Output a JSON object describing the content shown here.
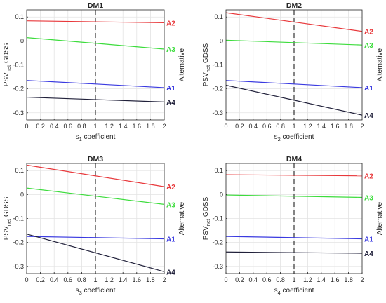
{
  "chart_data": [
    {
      "type": "line",
      "title": "DM1",
      "ylabel": "PSV",
      "ylabel_sub": "net",
      "ylabel_rest": " GDSS",
      "xlabel": "s",
      "xlabel_sub": "1",
      "xlabel_rest": " coefficient",
      "y2label": "Alternative",
      "xlim": [
        0,
        2
      ],
      "ylim": [
        -0.33,
        0.13
      ],
      "xticks": [
        0,
        0.2,
        0.4,
        0.6,
        0.8,
        1,
        1.2,
        1.4,
        1.6,
        1.8,
        2
      ],
      "xtick_labels": [
        "0",
        "0.2",
        "0.4",
        "0.6",
        "0.8",
        "1",
        "1.2",
        "1.4",
        "1.6",
        "1.8",
        "2"
      ],
      "yticks": [
        0.1,
        0,
        -0.1,
        -0.2,
        -0.3
      ],
      "ytick_labels": [
        "0.1",
        "0",
        "-0.1",
        "-0.2",
        "-0.3"
      ],
      "grid": true,
      "reference_x": 1,
      "series": [
        {
          "name": "A2",
          "color": "#e8383b",
          "x": [
            0,
            2
          ],
          "y": [
            0.084,
            0.076
          ]
        },
        {
          "name": "A3",
          "color": "#3ddc3d",
          "x": [
            0,
            2
          ],
          "y": [
            0.014,
            -0.034
          ]
        },
        {
          "name": "A1",
          "color": "#3a3ae0",
          "x": [
            0,
            2
          ],
          "y": [
            -0.165,
            -0.195
          ]
        },
        {
          "name": "A4",
          "color": "#20203a",
          "x": [
            0,
            2
          ],
          "y": [
            -0.235,
            -0.255
          ]
        }
      ]
    },
    {
      "type": "line",
      "title": "DM2",
      "ylabel": "PSV",
      "ylabel_sub": "net",
      "ylabel_rest": " GDSS",
      "xlabel": "s",
      "xlabel_sub": "2",
      "xlabel_rest": " coefficient",
      "y2label": "Alternative",
      "xlim": [
        0,
        2
      ],
      "ylim": [
        -0.33,
        0.13
      ],
      "xticks": [
        0,
        0.2,
        0.4,
        0.6,
        0.8,
        1,
        1.2,
        1.4,
        1.6,
        1.8,
        2
      ],
      "xtick_labels": [
        "0",
        "0.2",
        "0.4",
        "0.6",
        "0.8",
        "1",
        "1.2",
        "1.4",
        "1.6",
        "1.8",
        "2"
      ],
      "yticks": [
        0.1,
        0,
        -0.1,
        -0.2,
        -0.3
      ],
      "ytick_labels": [
        "0.1",
        "0",
        "-0.1",
        "-0.2",
        "-0.3"
      ],
      "grid": true,
      "reference_x": 1,
      "series": [
        {
          "name": "A2",
          "color": "#e8383b",
          "x": [
            0,
            2
          ],
          "y": [
            0.118,
            0.04
          ]
        },
        {
          "name": "A3",
          "color": "#3ddc3d",
          "x": [
            0,
            2
          ],
          "y": [
            0.003,
            -0.017
          ]
        },
        {
          "name": "A1",
          "color": "#3a3ae0",
          "x": [
            0,
            2
          ],
          "y": [
            -0.165,
            -0.195
          ]
        },
        {
          "name": "A4",
          "color": "#20203a",
          "x": [
            0,
            2
          ],
          "y": [
            -0.185,
            -0.31
          ]
        }
      ]
    },
    {
      "type": "line",
      "title": "DM3",
      "ylabel": "PSV",
      "ylabel_sub": "net",
      "ylabel_rest": " GDSS",
      "xlabel": "s",
      "xlabel_sub": "3",
      "xlabel_rest": " coefficient",
      "y2label": "Alternative",
      "xlim": [
        0,
        2
      ],
      "ylim": [
        -0.33,
        0.13
      ],
      "xticks": [
        0,
        0.2,
        0.4,
        0.6,
        0.8,
        1,
        1.2,
        1.4,
        1.6,
        1.8,
        2
      ],
      "xtick_labels": [
        "0",
        "0.2",
        "0.4",
        "0.6",
        "0.8",
        "1",
        "1.2",
        "1.4",
        "1.6",
        "1.8",
        "2"
      ],
      "yticks": [
        0.1,
        0,
        -0.1,
        -0.2,
        -0.3
      ],
      "ytick_labels": [
        "0.1",
        "0",
        "-0.1",
        "-0.2",
        "-0.3"
      ],
      "grid": true,
      "reference_x": 1,
      "series": [
        {
          "name": "A2",
          "color": "#e8383b",
          "x": [
            0,
            2
          ],
          "y": [
            0.123,
            0.033
          ]
        },
        {
          "name": "A3",
          "color": "#3ddc3d",
          "x": [
            0,
            2
          ],
          "y": [
            0.027,
            -0.041
          ]
        },
        {
          "name": "A1",
          "color": "#3a3ae0",
          "x": [
            0,
            2
          ],
          "y": [
            -0.175,
            -0.185
          ]
        },
        {
          "name": "A4",
          "color": "#20203a",
          "x": [
            0,
            2
          ],
          "y": [
            -0.165,
            -0.322
          ]
        }
      ]
    },
    {
      "type": "line",
      "title": "DM4",
      "ylabel": "PSV",
      "ylabel_sub": "net",
      "ylabel_rest": " GDSS",
      "xlabel": "s",
      "xlabel_sub": "4",
      "xlabel_rest": " coefficient",
      "y2label": "Alternative",
      "xlim": [
        0,
        2
      ],
      "ylim": [
        -0.33,
        0.13
      ],
      "xticks": [
        0,
        0.2,
        0.4,
        0.6,
        0.8,
        1,
        1.2,
        1.4,
        1.6,
        1.8,
        2
      ],
      "xtick_labels": [
        "0",
        "0.2",
        "0.4",
        "0.6",
        "0.8",
        "1",
        "1.2",
        "1.4",
        "1.6",
        "1.8",
        "2"
      ],
      "yticks": [
        0.1,
        0,
        -0.1,
        -0.2,
        -0.3
      ],
      "ytick_labels": [
        "0.1",
        "0",
        "-0.1",
        "-0.2",
        "-0.3"
      ],
      "grid": true,
      "reference_x": 1,
      "series": [
        {
          "name": "A2",
          "color": "#e8383b",
          "x": [
            0,
            2
          ],
          "y": [
            0.083,
            0.078
          ]
        },
        {
          "name": "A3",
          "color": "#3ddc3d",
          "x": [
            0,
            2
          ],
          "y": [
            -0.002,
            -0.012
          ]
        },
        {
          "name": "A1",
          "color": "#3a3ae0",
          "x": [
            0,
            2
          ],
          "y": [
            -0.175,
            -0.185
          ]
        },
        {
          "name": "A4",
          "color": "#20203a",
          "x": [
            0,
            2
          ],
          "y": [
            -0.24,
            -0.245
          ]
        }
      ]
    }
  ]
}
